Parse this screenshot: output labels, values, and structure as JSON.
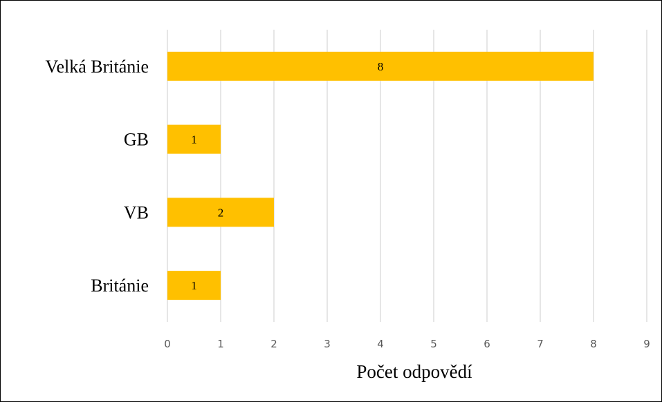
{
  "chart_data": {
    "type": "bar",
    "orientation": "horizontal",
    "categories": [
      "Velká Británie",
      "GB",
      "VB",
      "Británie"
    ],
    "values": [
      8,
      1,
      2,
      1
    ],
    "data_labels": [
      "8",
      "1",
      "2",
      "1"
    ],
    "xlabel": "Počet odpovědí",
    "ylabel": "",
    "title": "",
    "xlim": [
      0,
      9
    ],
    "x_ticks": [
      0,
      1,
      2,
      3,
      4,
      5,
      6,
      7,
      8,
      9
    ],
    "grid": "vertical",
    "legend": "none",
    "bar_color": "#FFC000"
  }
}
